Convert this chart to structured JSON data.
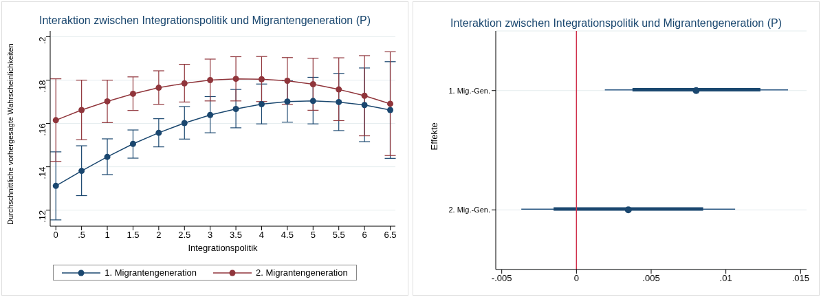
{
  "chart_data": [
    {
      "type": "line",
      "title": "Interaktion zwischen Integrationspolitik und Migrantengeneration (P)",
      "xlabel": "Integrationspolitik",
      "ylabel": "Durchschnittliche vorhergesagte Wahrscheinlichkeiten",
      "x": [
        0,
        0.5,
        1,
        1.5,
        2,
        2.5,
        3,
        3.5,
        4,
        4.5,
        5,
        5.5,
        6,
        6.5
      ],
      "series": [
        {
          "name": "1. Migrantengeneration",
          "color": "#1a476f",
          "values": [
            0.1312,
            0.1381,
            0.1446,
            0.1506,
            0.1557,
            0.1602,
            0.1639,
            0.1667,
            0.1689,
            0.1701,
            0.1704,
            0.1699,
            0.1685,
            0.1662
          ],
          "errors": [
            [
              0.1155,
              0.1469
            ],
            [
              0.1267,
              0.1497
            ],
            [
              0.1364,
              0.1529
            ],
            [
              0.144,
              0.157
            ],
            [
              0.1492,
              0.1622
            ],
            [
              0.1528,
              0.1678
            ],
            [
              0.1557,
              0.1724
            ],
            [
              0.158,
              0.1757
            ],
            [
              0.1598,
              0.1782
            ],
            [
              0.1606,
              0.1797
            ],
            [
              0.1598,
              0.1813
            ],
            [
              0.1567,
              0.1831
            ],
            [
              0.1516,
              0.1856
            ],
            [
              0.1439,
              0.1885
            ]
          ]
        },
        {
          "name": "2. Migrantengeneration",
          "color": "#90353b",
          "values": [
            0.1615,
            0.1662,
            0.1702,
            0.1737,
            0.1765,
            0.1785,
            0.18,
            0.1806,
            0.1804,
            0.1797,
            0.1781,
            0.1757,
            0.1728,
            0.1691
          ],
          "errors": [
            [
              0.1425,
              0.1806
            ],
            [
              0.1525,
              0.18
            ],
            [
              0.1604,
              0.18
            ],
            [
              0.166,
              0.1815
            ],
            [
              0.1688,
              0.1843
            ],
            [
              0.1699,
              0.1873
            ],
            [
              0.1704,
              0.1897
            ],
            [
              0.1704,
              0.1908
            ],
            [
              0.1701,
              0.1909
            ],
            [
              0.1688,
              0.1904
            ],
            [
              0.1661,
              0.1901
            ],
            [
              0.1613,
              0.1903
            ],
            [
              0.1543,
              0.1913
            ],
            [
              0.1452,
              0.1931
            ]
          ]
        }
      ],
      "xlim": [
        -0.11,
        6.6
      ],
      "xticks": [
        0,
        {
          "value": 0.5,
          "label": ".5"
        },
        1,
        1.5,
        2,
        2.5,
        3,
        3.5,
        4,
        4.5,
        5,
        5.5,
        6,
        6.5
      ],
      "ylim": [
        0.1126,
        0.2027
      ],
      "yticks": [
        {
          "value": 0.12,
          "label": ".12"
        },
        {
          "value": 0.14,
          "label": ".14"
        },
        {
          "value": 0.16,
          "label": ".16"
        },
        {
          "value": 0.18,
          "label": ".18"
        },
        {
          "value": 0.2,
          "label": ".2"
        }
      ],
      "grid": "y",
      "legend": "bottom",
      "marker": "circle"
    },
    {
      "type": "scatter",
      "orientation": "horizontal",
      "title": "Interaktion zwischen Integrationspolitik und Migrantengeneration (P)",
      "ylabel": "Effekte",
      "categories": [
        "1. Mig.-Gen.",
        "2. Mig.-Gen."
      ],
      "series": [
        {
          "type": "bar",
          "color": "#2a5783",
          "base": [
            0.0019,
            -0.00369
          ],
          "values": [
            0.01226,
            0.01431
          ]
        },
        {
          "type": "bar",
          "color": "#1a476f",
          "base": [
            0.00375,
            -0.00153
          ],
          "values": [
            0.00856,
            0.01001
          ]
        },
        {
          "type": "scatter",
          "color": "#1a476f",
          "values": [
            0.00801,
            0.00347
          ]
        }
      ],
      "xlim": [
        -0.0054,
        0.0154
      ],
      "xticks": [
        {
          "value": -0.005,
          "label": "-.005"
        },
        0,
        {
          "value": 0.005,
          "label": ".005"
        },
        {
          "value": 0.01,
          "label": ".01"
        },
        {
          "value": 0.015,
          "label": ".015"
        }
      ],
      "ref_lines": [
        {
          "axis": "x",
          "value": 0,
          "color": "#d0304a"
        }
      ],
      "grid": "y",
      "marker": "circle"
    }
  ]
}
